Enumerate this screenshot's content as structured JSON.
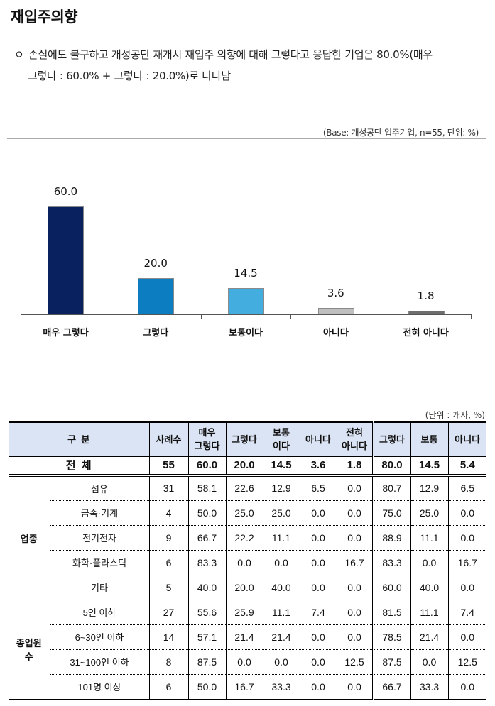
{
  "title": "재입주의향",
  "summary": {
    "bullet": "ㅇ",
    "line1": "손실에도 불구하고 개성공단 재개시 재입주 의향에 대해 그렇다고 응답한 기업은 80.0%(매우",
    "line2": "그렇다 : 60.0% + 그렇다 : 20.0%)로 나타남"
  },
  "base_note": "(Base: 개성공단 입주기업, n=55, 단위: %)",
  "chart_data": {
    "type": "bar",
    "title": "",
    "xlabel": "",
    "ylabel": "",
    "categories": [
      "매우 그렇다",
      "그렇다",
      "보통이다",
      "아니다",
      "전혀 아니다"
    ],
    "values": [
      60.0,
      20.0,
      14.5,
      3.6,
      1.8
    ],
    "value_labels": [
      "60.0",
      "20.0",
      "14.5",
      "3.6",
      "1.8"
    ],
    "colors": [
      "#0a2160",
      "#0d7dc1",
      "#44ade0",
      "#bfbfbf",
      "#6e6e6e"
    ],
    "ylim": [
      0,
      60
    ],
    "grid": false,
    "legend": "none"
  },
  "table": {
    "unit_note": "(단위 : 개사, %)",
    "headers": {
      "category": "구  분",
      "count": "사례수",
      "very_yes_l1": "매우",
      "very_yes_l2": "그렇다",
      "yes": "그렇다",
      "neutral_l1": "보통",
      "neutral_l2": "이다",
      "no": "아니다",
      "never_l1": "전혀",
      "never_l2": "아니다",
      "sum_yes": "그렇다",
      "sum_neutral": "보통",
      "sum_no": "아니다"
    },
    "total": {
      "label": "전  체",
      "values": [
        "55",
        "60.0",
        "20.0",
        "14.5",
        "3.6",
        "1.8",
        "80.0",
        "14.5",
        "5.4"
      ]
    },
    "groups": [
      {
        "name": "업종",
        "rows": [
          {
            "label": "섬유",
            "values": [
              "31",
              "58.1",
              "22.6",
              "12.9",
              "6.5",
              "0.0",
              "80.7",
              "12.9",
              "6.5"
            ]
          },
          {
            "label": "금속·기계",
            "values": [
              "4",
              "50.0",
              "25.0",
              "25.0",
              "0.0",
              "0.0",
              "75.0",
              "25.0",
              "0.0"
            ]
          },
          {
            "label": "전기전자",
            "values": [
              "9",
              "66.7",
              "22.2",
              "11.1",
              "0.0",
              "0.0",
              "88.9",
              "11.1",
              "0.0"
            ]
          },
          {
            "label": "화학·플라스틱",
            "values": [
              "6",
              "83.3",
              "0.0",
              "0.0",
              "0.0",
              "16.7",
              "83.3",
              "0.0",
              "16.7"
            ]
          },
          {
            "label": "기타",
            "values": [
              "5",
              "40.0",
              "20.0",
              "40.0",
              "0.0",
              "0.0",
              "60.0",
              "40.0",
              "0.0"
            ]
          }
        ]
      },
      {
        "name_l1": "종업원",
        "name_l2": "수",
        "rows": [
          {
            "label": "5인 이하",
            "values": [
              "27",
              "55.6",
              "25.9",
              "11.1",
              "7.4",
              "0.0",
              "81.5",
              "11.1",
              "7.4"
            ]
          },
          {
            "label": "6~30인 이하",
            "values": [
              "14",
              "57.1",
              "21.4",
              "21.4",
              "0.0",
              "0.0",
              "78.5",
              "21.4",
              "0.0"
            ]
          },
          {
            "label": "31~100인 이하",
            "values": [
              "8",
              "87.5",
              "0.0",
              "0.0",
              "0.0",
              "12.5",
              "87.5",
              "0.0",
              "12.5"
            ]
          },
          {
            "label": "101명 이상",
            "values": [
              "6",
              "50.0",
              "16.7",
              "33.3",
              "0.0",
              "0.0",
              "66.7",
              "33.3",
              "0.0"
            ]
          }
        ]
      }
    ]
  }
}
